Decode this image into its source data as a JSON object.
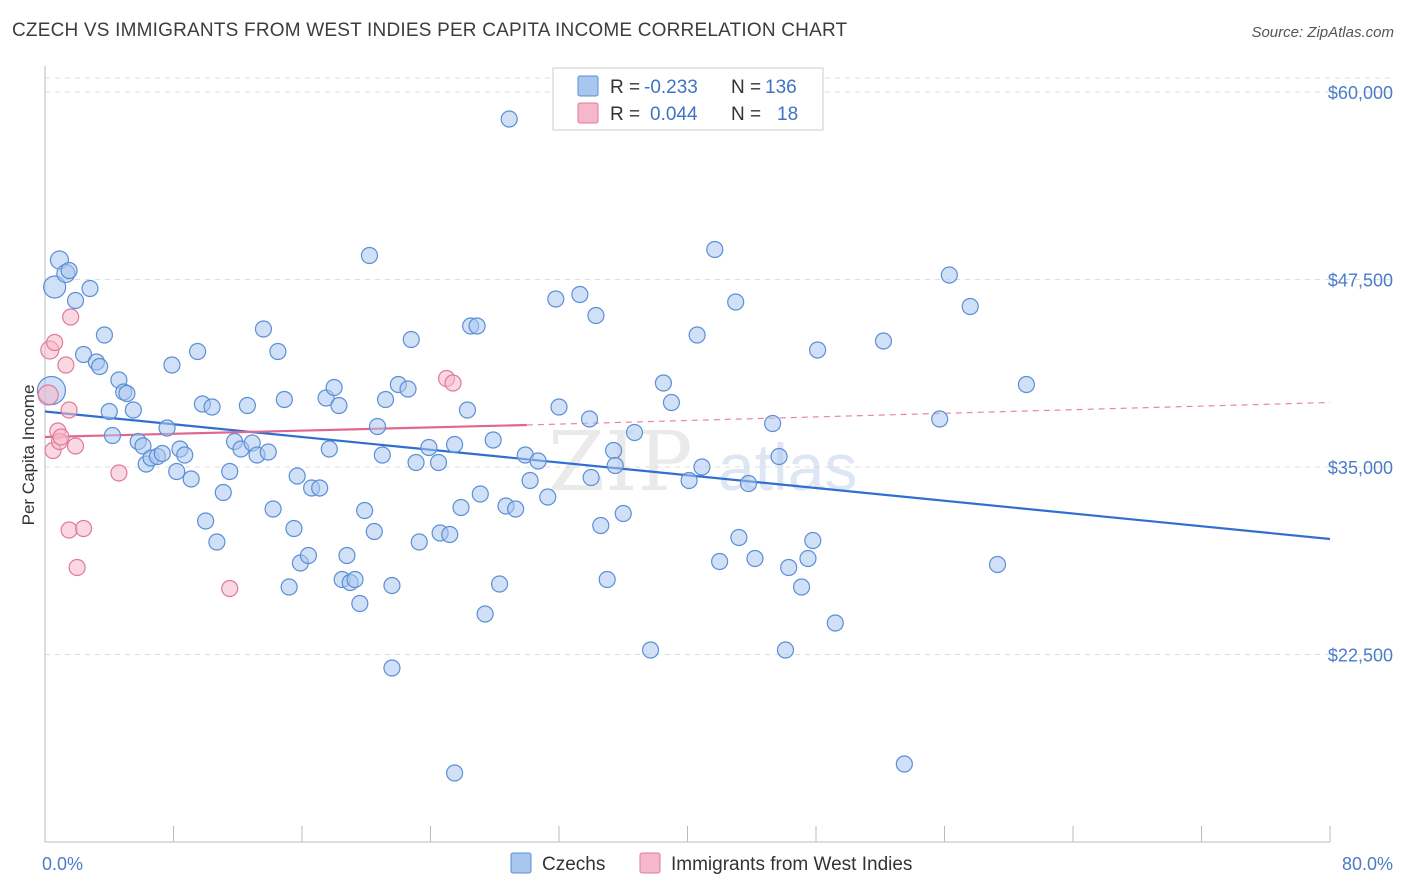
{
  "title": "CZECH VS IMMIGRANTS FROM WEST INDIES PER CAPITA INCOME CORRELATION CHART",
  "source": "Source: ZipAtlas.com",
  "watermark": {
    "zip": "ZIP",
    "atlas": "atlas"
  },
  "colors": {
    "czech_fill": "#a9c6ef",
    "czech_stroke": "#5b8fd6",
    "czech_line": "#2f6fd0",
    "wi_fill": "#f5b8cb",
    "wi_stroke": "#e07a9b",
    "wi_line": "#e06890",
    "axis_text": "#4a7cc9",
    "grid": "#dddddd"
  },
  "legend": {
    "rows": [
      {
        "r_label": "R =",
        "r_value": "-0.233",
        "n_label": "N =",
        "n_value": "136"
      },
      {
        "r_label": "R =",
        "r_value": "0.044",
        "n_label": "N =",
        "n_value": "18"
      }
    ]
  },
  "chart_data": {
    "type": "scatter",
    "title": "CZECH VS IMMIGRANTS FROM WEST INDIES PER CAPITA INCOME CORRELATION CHART",
    "xlabel": "",
    "ylabel": "Per Capita Income",
    "xlim": [
      0,
      80
    ],
    "ylim": [
      10000,
      62000
    ],
    "x_tick_labels": [
      "0.0%",
      "80.0%"
    ],
    "y_ticks": [
      22500,
      35000,
      47500,
      60000
    ],
    "y_tick_labels": [
      "$22,500",
      "$35,000",
      "$47,500",
      "$60,000"
    ],
    "grid": "horizontal dashed",
    "legend_position": "top-center",
    "series": [
      {
        "name": "Czechs",
        "r": -0.233,
        "n": 136,
        "trend": {
          "x0": 0,
          "y0": 38700,
          "x1": 80,
          "y1": 30200
        },
        "points": [
          [
            0.4,
            40100,
            14
          ],
          [
            0.6,
            47000,
            11
          ],
          [
            0.9,
            48800,
            9
          ],
          [
            1.3,
            47900,
            9
          ],
          [
            1.5,
            48100,
            8
          ],
          [
            1.9,
            46100,
            8
          ],
          [
            2.4,
            42500,
            8
          ],
          [
            2.8,
            46900,
            8
          ],
          [
            3.2,
            42000,
            8
          ],
          [
            3.4,
            41700,
            8
          ],
          [
            3.7,
            43800,
            8
          ],
          [
            4.0,
            38700,
            8
          ],
          [
            4.2,
            37100,
            8
          ],
          [
            4.6,
            40800,
            8
          ],
          [
            4.9,
            40000,
            8
          ],
          [
            5.1,
            39900,
            8
          ],
          [
            5.5,
            38800,
            8
          ],
          [
            5.8,
            36700,
            8
          ],
          [
            6.1,
            36400,
            8
          ],
          [
            6.3,
            35200,
            8
          ],
          [
            6.6,
            35600,
            8
          ],
          [
            7.0,
            35700,
            8
          ],
          [
            7.3,
            35900,
            8
          ],
          [
            7.6,
            37600,
            8
          ],
          [
            7.9,
            41800,
            8
          ],
          [
            8.2,
            34700,
            8
          ],
          [
            8.4,
            36200,
            8
          ],
          [
            8.7,
            35800,
            8
          ],
          [
            9.1,
            34200,
            8
          ],
          [
            9.5,
            42700,
            8
          ],
          [
            9.8,
            39200,
            8
          ],
          [
            10.0,
            31400,
            8
          ],
          [
            10.4,
            39000,
            8
          ],
          [
            10.7,
            30000,
            8
          ],
          [
            11.1,
            33300,
            8
          ],
          [
            11.5,
            34700,
            8
          ],
          [
            11.8,
            36700,
            8
          ],
          [
            12.2,
            36200,
            8
          ],
          [
            12.6,
            39100,
            8
          ],
          [
            12.9,
            36600,
            8
          ],
          [
            13.2,
            35800,
            8
          ],
          [
            13.6,
            44200,
            8
          ],
          [
            13.9,
            36000,
            8
          ],
          [
            14.2,
            32200,
            8
          ],
          [
            14.5,
            42700,
            8
          ],
          [
            14.9,
            39500,
            8
          ],
          [
            15.2,
            27000,
            8
          ],
          [
            15.5,
            30900,
            8
          ],
          [
            15.7,
            34400,
            8
          ],
          [
            15.9,
            28600,
            8
          ],
          [
            16.4,
            29100,
            8
          ],
          [
            16.6,
            33600,
            8
          ],
          [
            17.1,
            33600,
            8
          ],
          [
            17.5,
            39600,
            8
          ],
          [
            17.7,
            36200,
            8
          ],
          [
            18.0,
            40300,
            8
          ],
          [
            18.3,
            39100,
            8
          ],
          [
            18.5,
            27500,
            8
          ],
          [
            18.8,
            29100,
            8
          ],
          [
            19.0,
            27300,
            8
          ],
          [
            19.3,
            27500,
            8
          ],
          [
            19.6,
            25900,
            8
          ],
          [
            19.9,
            32100,
            8
          ],
          [
            20.2,
            49100,
            8
          ],
          [
            20.5,
            30700,
            8
          ],
          [
            20.7,
            37700,
            8
          ],
          [
            21.0,
            35800,
            8
          ],
          [
            21.2,
            39500,
            8
          ],
          [
            21.6,
            27100,
            8
          ],
          [
            22.0,
            40500,
            8
          ],
          [
            22.6,
            40200,
            8
          ],
          [
            22.8,
            43500,
            8
          ],
          [
            23.1,
            35300,
            8
          ],
          [
            23.3,
            30000,
            8
          ],
          [
            23.9,
            36300,
            8
          ],
          [
            24.5,
            35300,
            8
          ],
          [
            24.6,
            30600,
            8
          ],
          [
            25.2,
            30500,
            8
          ],
          [
            25.5,
            36500,
            8
          ],
          [
            25.9,
            32300,
            8
          ],
          [
            26.3,
            38800,
            8
          ],
          [
            26.5,
            44400,
            8
          ],
          [
            26.9,
            44400,
            8
          ],
          [
            27.1,
            33200,
            8
          ],
          [
            27.4,
            25200,
            8
          ],
          [
            27.9,
            36800,
            8
          ],
          [
            28.3,
            27200,
            8
          ],
          [
            28.7,
            32400,
            8
          ],
          [
            29.3,
            32200,
            8
          ],
          [
            28.9,
            58200,
            8
          ],
          [
            29.9,
            35800,
            8
          ],
          [
            30.2,
            34100,
            8
          ],
          [
            30.7,
            35400,
            8
          ],
          [
            31.3,
            33000,
            8
          ],
          [
            31.8,
            46200,
            8
          ],
          [
            32.0,
            39000,
            8
          ],
          [
            33.3,
            46500,
            8
          ],
          [
            33.9,
            38200,
            8
          ],
          [
            34.0,
            34300,
            8
          ],
          [
            34.3,
            45100,
            8
          ],
          [
            34.6,
            31100,
            8
          ],
          [
            35.0,
            27500,
            8
          ],
          [
            35.4,
            36100,
            8
          ],
          [
            35.5,
            35100,
            8
          ],
          [
            36.0,
            31900,
            8
          ],
          [
            36.7,
            37300,
            8
          ],
          [
            37.7,
            22800,
            8
          ],
          [
            38.5,
            40600,
            8
          ],
          [
            39.0,
            39300,
            8
          ],
          [
            40.1,
            34100,
            8
          ],
          [
            40.6,
            43800,
            8
          ],
          [
            40.9,
            35000,
            8
          ],
          [
            41.7,
            49500,
            8
          ],
          [
            42.0,
            28700,
            8
          ],
          [
            43.0,
            46000,
            8
          ],
          [
            43.2,
            30300,
            8
          ],
          [
            43.8,
            33900,
            8
          ],
          [
            44.2,
            28900,
            8
          ],
          [
            45.3,
            37900,
            8
          ],
          [
            45.7,
            35700,
            8
          ],
          [
            46.1,
            22800,
            8
          ],
          [
            46.3,
            28300,
            8
          ],
          [
            47.1,
            27000,
            8
          ],
          [
            47.5,
            28900,
            8
          ],
          [
            47.8,
            30100,
            8
          ],
          [
            48.1,
            42800,
            8
          ],
          [
            49.2,
            24600,
            8
          ],
          [
            52.2,
            43400,
            8
          ],
          [
            53.5,
            15200,
            8
          ],
          [
            55.7,
            38200,
            8
          ],
          [
            56.3,
            47800,
            8
          ],
          [
            57.6,
            45700,
            8
          ],
          [
            59.3,
            28500,
            8
          ],
          [
            61.1,
            40500,
            8
          ],
          [
            25.5,
            14600,
            8
          ],
          [
            21.6,
            21600,
            8
          ]
        ]
      },
      {
        "name": "Immigrants from West Indies",
        "r": 0.044,
        "n": 18,
        "trend": {
          "x0": 0,
          "y0": 37000,
          "x1": 30,
          "y1": 37800,
          "dashed_to_x": 80,
          "dashed_to_y": 39300
        },
        "points": [
          [
            0.2,
            39800,
            10
          ],
          [
            0.3,
            42800,
            9
          ],
          [
            0.5,
            36100,
            8
          ],
          [
            0.6,
            43300,
            8
          ],
          [
            0.8,
            37400,
            8
          ],
          [
            0.9,
            36700,
            8
          ],
          [
            1.0,
            37000,
            8
          ],
          [
            1.3,
            41800,
            8
          ],
          [
            1.5,
            38800,
            8
          ],
          [
            1.6,
            45000,
            8
          ],
          [
            1.5,
            30800,
            8
          ],
          [
            1.9,
            36400,
            8
          ],
          [
            2.0,
            28300,
            8
          ],
          [
            2.4,
            30900,
            8
          ],
          [
            4.6,
            34600,
            8
          ],
          [
            11.5,
            26900,
            8
          ],
          [
            25.0,
            40900,
            8
          ],
          [
            25.4,
            40600,
            8
          ]
        ]
      }
    ]
  },
  "bottom_legend": {
    "items": [
      "Czechs",
      "Immigrants from West Indies"
    ]
  }
}
